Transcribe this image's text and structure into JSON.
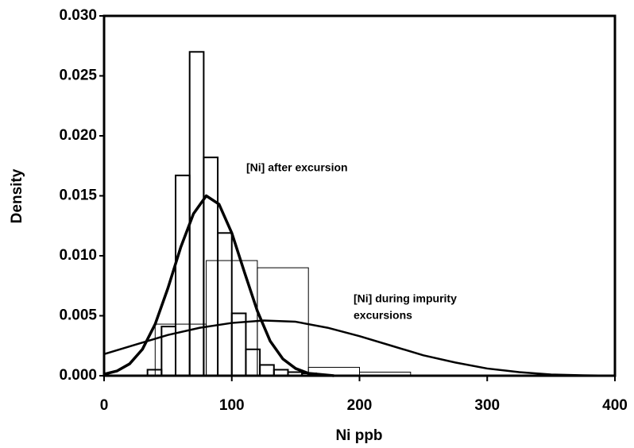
{
  "chart_data": {
    "type": "histogram",
    "xlabel": "Ni ppb",
    "ylabel": "Density",
    "xlim": [
      0,
      400
    ],
    "xticks": [
      0,
      100,
      200,
      300,
      400
    ],
    "ylim": [
      0,
      0.03
    ],
    "yticks": [
      {
        "value": 0,
        "label": "0.000"
      },
      {
        "value": 0.005,
        "label": "0.005"
      },
      {
        "value": 0.01,
        "label": "0.010"
      },
      {
        "value": 0.015,
        "label": "0.015"
      },
      {
        "value": 0.02,
        "label": "0.020"
      },
      {
        "value": 0.025,
        "label": "0.025"
      },
      {
        "value": 0.03,
        "label": "0.030"
      }
    ],
    "color": "#000000",
    "histograms": [
      {
        "bins": [
          40,
          80,
          120,
          160,
          200,
          240
        ],
        "counts": [
          0.0043,
          0.0096,
          0.009,
          0.0007,
          0.0003
        ]
      },
      {
        "bins": [
          34,
          45,
          56,
          67,
          78,
          89,
          100,
          111,
          122,
          133,
          144,
          155,
          166
        ],
        "counts": [
          0.0005,
          0.0041,
          0.0167,
          0.027,
          0.0182,
          0.0119,
          0.0052,
          0.0022,
          0.0009,
          0.0005,
          0.0003,
          0.0002
        ]
      }
    ],
    "curves": [
      {
        "x": [
          0,
          25,
          50,
          75,
          100,
          125,
          150,
          175,
          200,
          225,
          250,
          275,
          300,
          325,
          350,
          375,
          400
        ],
        "values": [
          0.0018,
          0.0026,
          0.0034,
          0.004,
          0.0044,
          0.0046,
          0.0045,
          0.004,
          0.0033,
          0.0025,
          0.0017,
          0.0011,
          0.0006,
          0.0003,
          0.0001,
          3e-05,
          0
        ]
      },
      {
        "x": [
          0,
          10,
          20,
          30,
          40,
          50,
          60,
          70,
          80,
          90,
          100,
          110,
          120,
          130,
          140,
          150,
          160,
          170,
          180
        ],
        "values": [
          0.00013,
          0.00039,
          0.00099,
          0.0022,
          0.0043,
          0.0073,
          0.0107,
          0.0135,
          0.015,
          0.0143,
          0.0119,
          0.0086,
          0.0054,
          0.0029,
          0.0014,
          0.0006,
          0.0002,
          0.0001,
          0
        ]
      }
    ],
    "annotations": [
      "[Ni] after excursion",
      "[Ni] during impurity",
      "excursions"
    ]
  }
}
